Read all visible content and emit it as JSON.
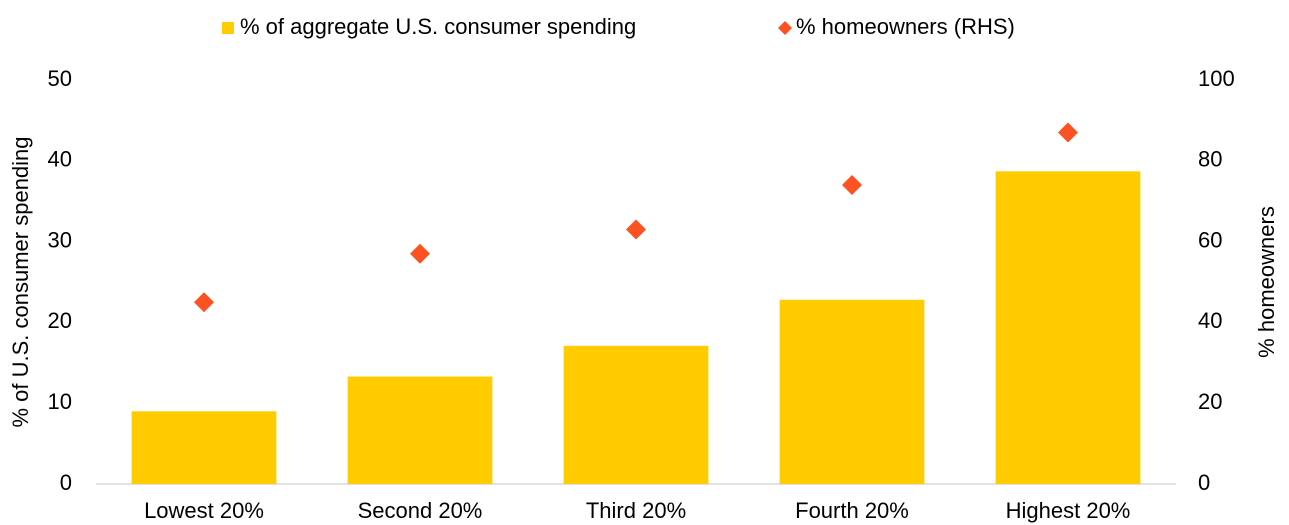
{
  "chart_data": {
    "type": "bar",
    "categories": [
      "Lowest 20%",
      "Second 20%",
      "Third 20%",
      "Fourth 20%",
      "Highest 20%"
    ],
    "series": [
      {
        "name": "% of aggregate U.S. consumer spending",
        "type": "bar",
        "color": "#ffcc00",
        "values": [
          9.0,
          13.3,
          17.1,
          22.8,
          38.7
        ]
      },
      {
        "name": "% homeowners (RHS)",
        "type": "scatter",
        "color": "#fc5120",
        "axis": "y2",
        "values": [
          45,
          57,
          63,
          74,
          87
        ]
      }
    ],
    "ylabel": "% of U.S. consumer spending",
    "y2label": "% homeowners",
    "ylim": [
      0,
      50
    ],
    "yticks": [
      0,
      10,
      20,
      30,
      40,
      50
    ],
    "y2lim": [
      0,
      100
    ],
    "y2ticks": [
      0,
      20,
      40,
      60,
      80,
      100
    ],
    "legend": "top",
    "grid": false
  }
}
